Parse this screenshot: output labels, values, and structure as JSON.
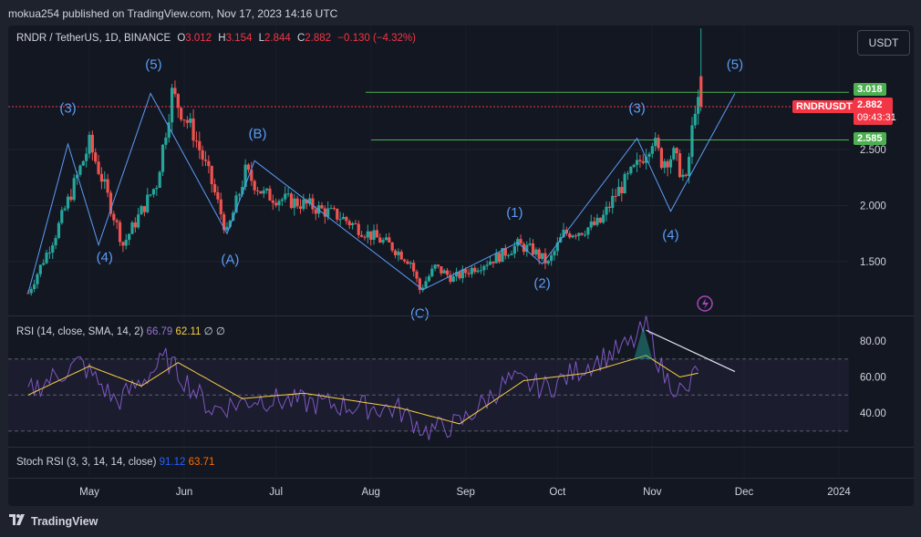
{
  "header": {
    "publish_text": "mokua254 published on TradingView.com, Nov 17, 2023 14:16 UTC"
  },
  "symbol_legend": {
    "symbol": "RNDR / TetherUS, 1D, BINANCE",
    "open_label": "O",
    "open": "3.012",
    "high_label": "H",
    "high": "3.154",
    "low_label": "L",
    "low": "2.844",
    "close_label": "C",
    "close": "2.882",
    "change": "−0.130 (−4.32%)"
  },
  "currency_button": "USDT",
  "price_tags": {
    "level_upper": "3.018",
    "level_lower": "2.585",
    "symbol_tag": "RNDRUSDT",
    "last_price": "2.882",
    "countdown": "09:43:31"
  },
  "rsi_legend": {
    "label": "RSI (14, close, SMA, 14, 2)",
    "rsi_value": "66.79",
    "ma_value": "62.11",
    "extra1": "∅",
    "extra2": "∅"
  },
  "stoch_legend": {
    "label": "Stoch RSI (3, 3, 14, 14, close)",
    "k_value": "91.12",
    "d_value": "63.71"
  },
  "footer": {
    "brand": "TradingView"
  },
  "colors": {
    "up": "#26a69a",
    "down": "#ef5350",
    "wave": "#5b9cf6",
    "rsi_line": "#7e57c2",
    "rsi_ma": "#f7d046",
    "level": "#4caf50",
    "last": "#f23645"
  },
  "chart_data": [
    {
      "type": "candlestick",
      "title": "RNDR / TetherUS, 1D, BINANCE",
      "x_ticks": [
        "May",
        "Jun",
        "Jul",
        "Aug",
        "Sep",
        "Oct",
        "Nov",
        "Dec",
        "2024"
      ],
      "y_ticks": [
        "1.500",
        "2.000",
        "2.500"
      ],
      "ylim": [
        1.0,
        3.6
      ],
      "series": [
        {
          "name": "price_path",
          "x": [
            "2023-04-11",
            "2023-04-20",
            "2023-05-01",
            "2023-05-05",
            "2023-05-12",
            "2023-05-23",
            "2023-05-28",
            "2023-06-04",
            "2023-06-10",
            "2023-06-15",
            "2023-06-21",
            "2023-06-27",
            "2023-07-04",
            "2023-07-12",
            "2023-07-22",
            "2023-07-31",
            "2023-08-07",
            "2023-08-14",
            "2023-08-17",
            "2023-08-22",
            "2023-08-28",
            "2023-09-04",
            "2023-09-12",
            "2023-09-18",
            "2023-09-23",
            "2023-09-28",
            "2023-10-03",
            "2023-10-09",
            "2023-10-15",
            "2023-10-20",
            "2023-10-27",
            "2023-11-01",
            "2023-11-04",
            "2023-11-08",
            "2023-11-12",
            "2023-11-15",
            "2023-11-16"
          ],
          "y": [
            1.22,
            1.75,
            2.55,
            2.25,
            1.65,
            2.2,
            3.0,
            2.65,
            2.2,
            1.75,
            2.3,
            2.1,
            2.05,
            2.0,
            1.9,
            1.75,
            1.65,
            1.5,
            1.25,
            1.45,
            1.35,
            1.45,
            1.55,
            1.65,
            1.6,
            1.48,
            1.75,
            1.78,
            1.85,
            2.1,
            2.35,
            2.6,
            2.4,
            2.45,
            2.2,
            2.9,
            2.882
          ]
        }
      ],
      "horizontal_levels": [
        3.018,
        2.585
      ],
      "last_price": 2.882,
      "annotations": [
        "(3)",
        "(4)",
        "(5)",
        "(A)",
        "(B)",
        "(C)",
        "(1)",
        "(2)",
        "(3)",
        "(4)",
        "(5)"
      ]
    },
    {
      "type": "line",
      "title": "RSI (14, close, SMA, 14, 2)",
      "y_ticks": [
        "40.00",
        "60.00",
        "80.00"
      ],
      "ylim": [
        25,
        90
      ],
      "series": [
        {
          "name": "RSI",
          "x": [
            "2023-04-11",
            "2023-04-28",
            "2023-05-10",
            "2023-05-26",
            "2023-06-10",
            "2023-06-25",
            "2023-07-10",
            "2023-07-25",
            "2023-08-10",
            "2023-08-19",
            "2023-08-30",
            "2023-09-15",
            "2023-09-28",
            "2023-10-10",
            "2023-10-25",
            "2023-10-30",
            "2023-11-05",
            "2023-11-12",
            "2023-11-16"
          ],
          "y": [
            52,
            68,
            46,
            70,
            42,
            48,
            46,
            44,
            42,
            30,
            34,
            58,
            54,
            66,
            78,
            88,
            60,
            50,
            66.79
          ]
        },
        {
          "name": "MA",
          "x": [
            "2023-04-11",
            "2023-05-01",
            "2023-05-18",
            "2023-05-30",
            "2023-06-20",
            "2023-07-10",
            "2023-08-10",
            "2023-08-30",
            "2023-09-20",
            "2023-10-10",
            "2023-10-30",
            "2023-11-10",
            "2023-11-16"
          ],
          "y": [
            50,
            66,
            55,
            68,
            48,
            51,
            43,
            34,
            58,
            62,
            72,
            60,
            62.11
          ]
        }
      ],
      "levels": [
        70,
        50,
        30
      ]
    },
    {
      "type": "line",
      "title": "Stoch RSI (3, 3, 14, 14, close)",
      "series": [
        {
          "name": "K",
          "values": [
            91.12
          ]
        },
        {
          "name": "D",
          "values": [
            63.71
          ]
        }
      ]
    }
  ]
}
